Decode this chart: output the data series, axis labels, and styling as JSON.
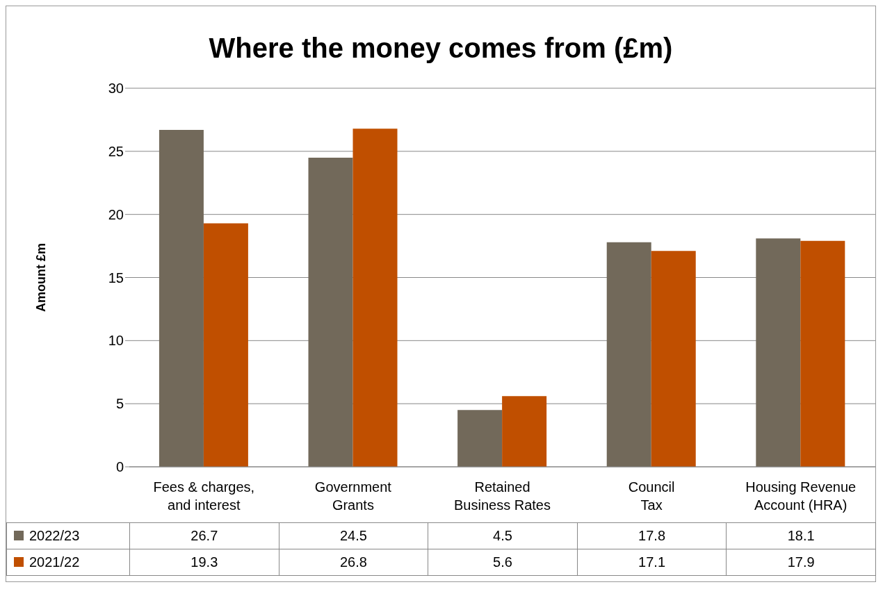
{
  "chart_data": {
    "type": "bar",
    "title": "Where the money comes from (£m)",
    "ylabel": "Amount £m",
    "categories": [
      "Fees & charges, and interest",
      "Government Grants",
      "Retained Business Rates",
      "Council Tax",
      "Housing Revenue Account (HRA)"
    ],
    "series": [
      {
        "name": "2022/23",
        "color": "#72695a",
        "values": [
          26.7,
          24.5,
          4.5,
          17.8,
          18.1
        ]
      },
      {
        "name": "2021/22",
        "color": "#c04f00",
        "values": [
          19.3,
          26.8,
          5.6,
          17.1,
          17.9
        ]
      }
    ],
    "ylim": [
      0,
      30
    ],
    "yticks": [
      0,
      5,
      10,
      15,
      20,
      25,
      30
    ],
    "grid": "y",
    "legend": "bottom",
    "data_labels": true
  }
}
